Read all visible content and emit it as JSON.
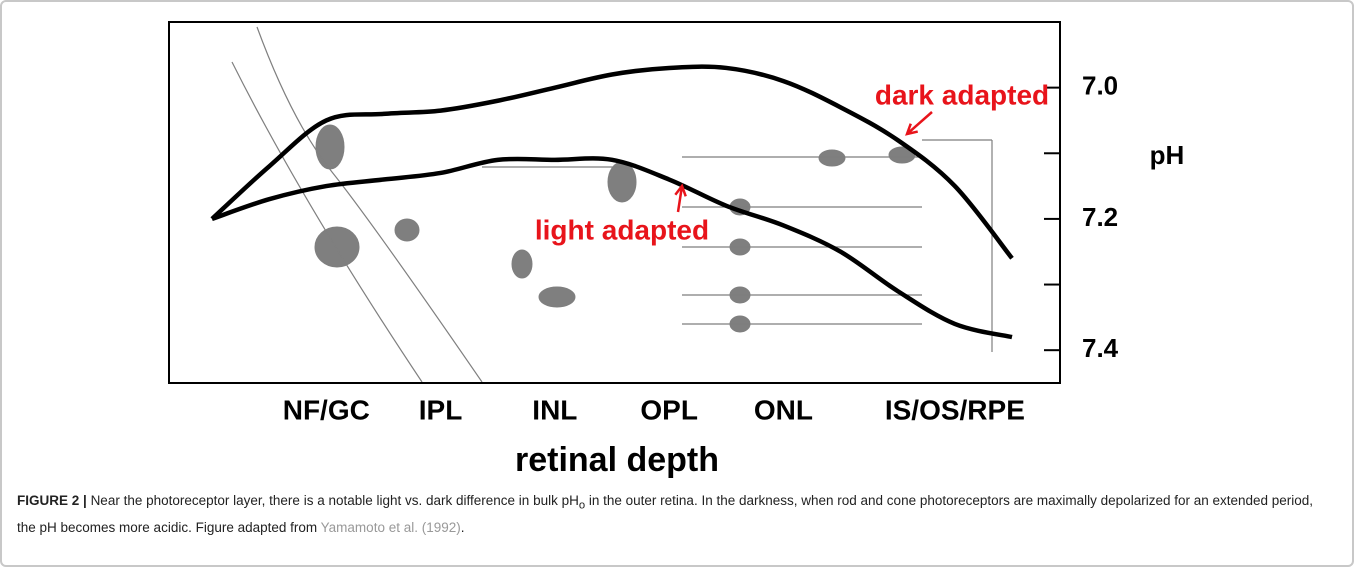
{
  "chart_data": {
    "type": "line",
    "x_label": "retinal depth",
    "y_label": "pH",
    "categories": [
      null,
      null,
      "NF/GC",
      null,
      "IPL",
      null,
      "INL",
      null,
      "OPL",
      null,
      "ONL",
      null,
      null,
      "IS/OS/RPE",
      null
    ],
    "series": [
      {
        "name": "dark adapted",
        "color": "#000000",
        "values": [
          7.2,
          7.12,
          7.05,
          7.04,
          7.035,
          7.02,
          7.0,
          6.98,
          6.97,
          6.97,
          6.99,
          7.03,
          7.08,
          7.15,
          7.26
        ]
      },
      {
        "name": "light adapted",
        "color": "#000000",
        "values": [
          7.2,
          7.17,
          7.15,
          7.14,
          7.13,
          7.11,
          7.11,
          7.11,
          7.14,
          7.18,
          7.21,
          7.25,
          7.31,
          7.36,
          7.38
        ]
      }
    ],
    "annotation_color": "#e8141b",
    "ylim": [
      6.9,
      7.45
    ],
    "y_reversed": true,
    "yticks": [
      {
        "value": 7,
        "label": "7.0"
      },
      {
        "value": 7.2,
        "label": "7.2"
      },
      {
        "value": 7.4,
        "label": "7.4"
      }
    ],
    "minor_yticks": [
      7.1,
      7.3
    ]
  },
  "caption": {
    "label": "FIGURE 2 |",
    "text1": "Near the photoreceptor layer, there is a notable light vs. dark difference in bulk pH",
    "sub": "o",
    "text2": "in the outer retina. In the darkness, when rod and cone photoreceptors are maximally depolarized for an extended period, the pH becomes more acidic. Figure adapted from",
    "link": "Yamamoto et al. (1992)",
    "end": "."
  }
}
